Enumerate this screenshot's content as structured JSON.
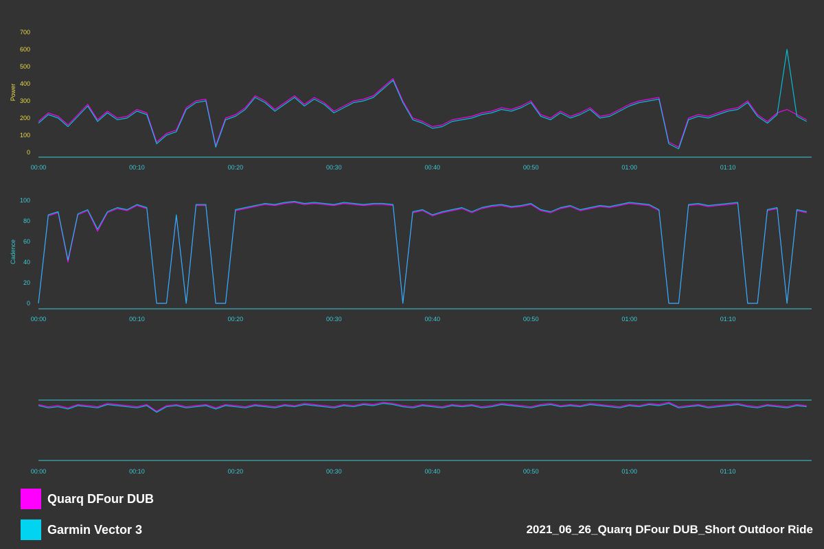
{
  "colors": {
    "background": "#333333",
    "quarq": "#ff00ff",
    "garmin": "#00d4f0",
    "axis": "#3cc8d2",
    "power_label": "#e8d84a",
    "cadence_label": "#3cc8d2",
    "balance_label": "#a01818"
  },
  "legend": {
    "items": [
      {
        "name": "Quarq DFour DUB",
        "color": "#ff00ff"
      },
      {
        "name": "Garmin Vector 3",
        "color": "#00d4f0"
      }
    ]
  },
  "footer": {
    "title": "2021_06_26_Quarq DFour DUB_Short Outdoor Ride"
  },
  "chart_data": [
    {
      "type": "line",
      "ylabel": "Power",
      "ylim": [
        0,
        700
      ],
      "yticks": [
        "0",
        "100",
        "200",
        "300",
        "400",
        "500",
        "600",
        "700"
      ],
      "xlim_minutes": [
        0,
        78.5
      ],
      "xticks": [
        "00:00",
        "00:10",
        "00:20",
        "00:30",
        "00:40",
        "00:50",
        "01:00",
        "01:10"
      ],
      "series": [
        {
          "name": "Quarq DFour DUB",
          "color": "#ff00ff",
          "x": [
            0,
            1,
            2,
            3,
            4,
            5,
            6,
            7,
            8,
            9,
            10,
            11,
            12,
            13,
            14,
            15,
            16,
            17,
            18,
            19,
            20,
            21,
            22,
            23,
            24,
            25,
            26,
            27,
            28,
            29,
            30,
            31,
            32,
            33,
            34,
            35,
            36,
            37,
            38,
            39,
            40,
            41,
            42,
            43,
            44,
            45,
            46,
            47,
            48,
            49,
            50,
            51,
            52,
            53,
            54,
            55,
            56,
            57,
            58,
            59,
            60,
            61,
            62,
            63,
            64,
            65,
            66,
            67,
            68,
            69,
            70,
            71,
            72,
            73,
            74,
            75,
            76,
            77,
            78
          ],
          "values": [
            180,
            230,
            210,
            160,
            220,
            280,
            190,
            240,
            200,
            210,
            250,
            230,
            60,
            110,
            130,
            260,
            300,
            310,
            40,
            200,
            220,
            260,
            330,
            300,
            250,
            290,
            330,
            280,
            320,
            290,
            240,
            270,
            300,
            310,
            330,
            380,
            430,
            300,
            200,
            180,
            150,
            160,
            190,
            200,
            210,
            230,
            240,
            260,
            250,
            270,
            300,
            220,
            200,
            240,
            210,
            230,
            260,
            210,
            220,
            250,
            280,
            300,
            310,
            320,
            60,
            30,
            200,
            220,
            210,
            230,
            250,
            260,
            300,
            220,
            180,
            230,
            250,
            220,
            190
          ]
        },
        {
          "name": "Garmin Vector 3",
          "color": "#00d4f0",
          "x": [
            0,
            1,
            2,
            3,
            4,
            5,
            6,
            7,
            8,
            9,
            10,
            11,
            12,
            13,
            14,
            15,
            16,
            17,
            18,
            19,
            20,
            21,
            22,
            23,
            24,
            25,
            26,
            27,
            28,
            29,
            30,
            31,
            32,
            33,
            34,
            35,
            36,
            37,
            38,
            39,
            40,
            41,
            42,
            43,
            44,
            45,
            46,
            47,
            48,
            49,
            50,
            51,
            52,
            53,
            54,
            55,
            56,
            57,
            58,
            59,
            60,
            61,
            62,
            63,
            64,
            65,
            66,
            67,
            68,
            69,
            70,
            71,
            72,
            73,
            74,
            75,
            76,
            77,
            78
          ],
          "values": [
            170,
            220,
            200,
            150,
            210,
            270,
            180,
            230,
            190,
            200,
            240,
            220,
            50,
            100,
            120,
            250,
            290,
            300,
            30,
            190,
            210,
            250,
            320,
            290,
            240,
            280,
            320,
            270,
            310,
            280,
            230,
            260,
            290,
            300,
            320,
            370,
            420,
            290,
            190,
            170,
            140,
            150,
            180,
            190,
            200,
            220,
            230,
            250,
            240,
            260,
            290,
            210,
            190,
            230,
            200,
            220,
            250,
            200,
            210,
            240,
            270,
            290,
            300,
            310,
            50,
            20,
            190,
            210,
            200,
            220,
            240,
            250,
            290,
            210,
            170,
            220,
            600,
            210,
            180
          ]
        }
      ]
    },
    {
      "type": "line",
      "ylabel": "Cadence",
      "ylim": [
        0,
        100
      ],
      "yticks": [
        "0",
        "20",
        "40",
        "60",
        "80",
        "100"
      ],
      "xlim_minutes": [
        0,
        78.5
      ],
      "xticks": [
        "00:00",
        "00:10",
        "00:20",
        "00:30",
        "00:40",
        "00:50",
        "01:00",
        "01:10"
      ],
      "series": [
        {
          "name": "Quarq DFour DUB",
          "color": "#ff00ff",
          "x": [
            0,
            1,
            2,
            3,
            4,
            5,
            6,
            7,
            8,
            9,
            10,
            11,
            12,
            13,
            14,
            15,
            16,
            17,
            18,
            19,
            20,
            21,
            22,
            23,
            24,
            25,
            26,
            27,
            28,
            29,
            30,
            31,
            32,
            33,
            34,
            35,
            36,
            37,
            38,
            39,
            40,
            41,
            42,
            43,
            44,
            45,
            46,
            47,
            48,
            49,
            50,
            51,
            52,
            53,
            54,
            55,
            56,
            57,
            58,
            59,
            60,
            61,
            62,
            63,
            64,
            65,
            66,
            67,
            68,
            69,
            70,
            71,
            72,
            73,
            74,
            75,
            76,
            77,
            78
          ],
          "values": [
            0,
            85,
            88,
            40,
            86,
            90,
            70,
            88,
            92,
            90,
            95,
            92,
            0,
            0,
            85,
            0,
            95,
            95,
            0,
            0,
            90,
            92,
            94,
            96,
            95,
            97,
            98,
            96,
            97,
            96,
            95,
            97,
            96,
            95,
            96,
            96,
            95,
            0,
            88,
            90,
            85,
            88,
            90,
            92,
            88,
            92,
            94,
            95,
            93,
            94,
            96,
            90,
            88,
            92,
            94,
            90,
            92,
            94,
            93,
            95,
            97,
            96,
            95,
            90,
            0,
            0,
            95,
            96,
            94,
            95,
            96,
            97,
            0,
            0,
            90,
            92,
            0,
            90,
            88
          ]
        },
        {
          "name": "Garmin Vector 3",
          "color": "#00d4f0",
          "x": [
            0,
            1,
            2,
            3,
            4,
            5,
            6,
            7,
            8,
            9,
            10,
            11,
            12,
            13,
            14,
            15,
            16,
            17,
            18,
            19,
            20,
            21,
            22,
            23,
            24,
            25,
            26,
            27,
            28,
            29,
            30,
            31,
            32,
            33,
            34,
            35,
            36,
            37,
            38,
            39,
            40,
            41,
            42,
            43,
            44,
            45,
            46,
            47,
            48,
            49,
            50,
            51,
            52,
            53,
            54,
            55,
            56,
            57,
            58,
            59,
            60,
            61,
            62,
            63,
            64,
            65,
            66,
            67,
            68,
            69,
            70,
            71,
            72,
            73,
            74,
            75,
            76,
            77,
            78
          ],
          "values": [
            0,
            86,
            89,
            42,
            87,
            91,
            72,
            89,
            93,
            91,
            96,
            93,
            0,
            0,
            86,
            0,
            96,
            96,
            0,
            0,
            91,
            93,
            95,
            97,
            96,
            98,
            99,
            97,
            98,
            97,
            96,
            98,
            97,
            96,
            97,
            97,
            96,
            0,
            89,
            91,
            86,
            89,
            91,
            93,
            89,
            93,
            95,
            96,
            94,
            95,
            97,
            91,
            89,
            93,
            95,
            91,
            93,
            95,
            94,
            96,
            98,
            97,
            96,
            91,
            0,
            0,
            96,
            97,
            95,
            96,
            97,
            98,
            0,
            0,
            91,
            93,
            0,
            91,
            89
          ]
        }
      ]
    },
    {
      "type": "line",
      "ylabel": "",
      "ylim": [
        0,
        100
      ],
      "yticks": [
        "",
        "",
        "",
        "",
        "",
        ""
      ],
      "xlim_minutes": [
        0,
        78.5
      ],
      "xticks": [
        "00:00",
        "00:10",
        "00:20",
        "00:30",
        "00:40",
        "00:50",
        "01:00",
        "01:10"
      ],
      "reference_line_value": 50,
      "series": [
        {
          "name": "Quarq DFour DUB",
          "color": "#ff00ff",
          "x": [
            0,
            1,
            2,
            3,
            4,
            5,
            6,
            7,
            8,
            9,
            10,
            11,
            12,
            13,
            14,
            15,
            16,
            17,
            18,
            19,
            20,
            21,
            22,
            23,
            24,
            25,
            26,
            27,
            28,
            29,
            30,
            31,
            32,
            33,
            34,
            35,
            36,
            37,
            38,
            39,
            40,
            41,
            42,
            43,
            44,
            45,
            46,
            47,
            48,
            49,
            50,
            51,
            52,
            53,
            54,
            55,
            56,
            57,
            58,
            59,
            60,
            61,
            62,
            63,
            64,
            65,
            66,
            67,
            68,
            69,
            70,
            71,
            72,
            73,
            74,
            75,
            76,
            77,
            78
          ],
          "values": [
            46,
            44,
            45,
            43,
            46,
            45,
            44,
            47,
            46,
            45,
            44,
            46,
            40,
            45,
            46,
            44,
            45,
            46,
            43,
            46,
            45,
            44,
            46,
            45,
            44,
            46,
            45,
            47,
            46,
            45,
            44,
            46,
            45,
            47,
            46,
            48,
            47,
            45,
            44,
            46,
            45,
            44,
            46,
            45,
            46,
            44,
            45,
            47,
            46,
            45,
            44,
            46,
            47,
            45,
            46,
            45,
            47,
            46,
            45,
            44,
            46,
            45,
            47,
            46,
            48,
            44,
            45,
            46,
            44,
            45,
            46,
            47,
            45,
            44,
            46,
            45,
            44,
            46,
            45
          ]
        },
        {
          "name": "Garmin Vector 3",
          "color": "#00d4f0",
          "x": [
            0,
            1,
            2,
            3,
            4,
            5,
            6,
            7,
            8,
            9,
            10,
            11,
            12,
            13,
            14,
            15,
            16,
            17,
            18,
            19,
            20,
            21,
            22,
            23,
            24,
            25,
            26,
            27,
            28,
            29,
            30,
            31,
            32,
            33,
            34,
            35,
            36,
            37,
            38,
            39,
            40,
            41,
            42,
            43,
            44,
            45,
            46,
            47,
            48,
            49,
            50,
            51,
            52,
            53,
            54,
            55,
            56,
            57,
            58,
            59,
            60,
            61,
            62,
            63,
            64,
            65,
            66,
            67,
            68,
            69,
            70,
            71,
            72,
            73,
            74,
            75,
            76,
            77,
            78
          ],
          "values": [
            45,
            43,
            44,
            42,
            45,
            44,
            43,
            46,
            45,
            44,
            43,
            45,
            39,
            44,
            45,
            43,
            44,
            45,
            42,
            45,
            44,
            43,
            45,
            44,
            43,
            45,
            44,
            46,
            45,
            44,
            43,
            45,
            44,
            46,
            45,
            47,
            46,
            44,
            43,
            45,
            44,
            43,
            45,
            44,
            45,
            43,
            44,
            46,
            45,
            44,
            43,
            45,
            46,
            44,
            45,
            44,
            46,
            45,
            44,
            43,
            45,
            44,
            46,
            45,
            47,
            43,
            44,
            45,
            43,
            44,
            45,
            46,
            44,
            43,
            45,
            44,
            43,
            45,
            44
          ]
        }
      ]
    }
  ]
}
